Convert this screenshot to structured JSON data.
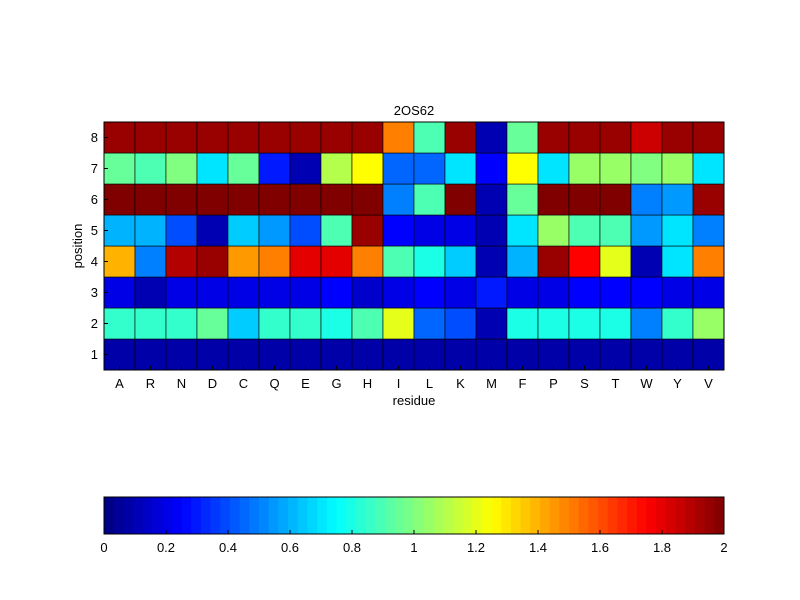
{
  "chart_data": {
    "type": "heatmap",
    "title": "2OS62",
    "xlabel": "residue",
    "ylabel": "position",
    "x_categories": [
      "A",
      "R",
      "N",
      "D",
      "C",
      "Q",
      "E",
      "G",
      "H",
      "I",
      "L",
      "K",
      "M",
      "F",
      "P",
      "S",
      "T",
      "W",
      "Y",
      "V"
    ],
    "y_categories": [
      "1",
      "2",
      "3",
      "4",
      "5",
      "6",
      "7",
      "8"
    ],
    "colormap": "jet",
    "clim": [
      0,
      2
    ],
    "colorbar": {
      "placement": "bottom",
      "ticks": [
        0,
        0.2,
        0.4,
        0.6,
        0.8,
        1,
        1.2,
        1.4,
        1.6,
        1.8,
        2
      ],
      "tick_labels": [
        "0",
        "0.2",
        "0.4",
        "0.6",
        "0.8",
        "1",
        "1.2",
        "1.4",
        "1.6",
        "1.8",
        "2"
      ]
    },
    "values": [
      [
        0.08,
        0.08,
        0.08,
        0.08,
        0.08,
        0.08,
        0.08,
        0.08,
        0.08,
        0.08,
        0.08,
        0.08,
        0.08,
        0.08,
        0.08,
        0.08,
        0.08,
        0.08,
        0.08,
        0.08
      ],
      [
        0.85,
        0.85,
        0.85,
        0.95,
        0.65,
        0.85,
        0.85,
        0.8,
        0.9,
        1.2,
        0.45,
        0.4,
        0.1,
        0.8,
        0.8,
        0.8,
        0.8,
        0.5,
        0.85,
        1.05
      ],
      [
        0.2,
        0.1,
        0.2,
        0.2,
        0.2,
        0.2,
        0.2,
        0.25,
        0.15,
        0.2,
        0.25,
        0.2,
        0.3,
        0.2,
        0.2,
        0.25,
        0.25,
        0.25,
        0.2,
        0.2
      ],
      [
        1.4,
        0.5,
        1.9,
        1.95,
        1.45,
        1.5,
        1.8,
        1.8,
        1.5,
        0.9,
        0.8,
        0.65,
        0.1,
        0.6,
        1.95,
        1.75,
        1.2,
        0.1,
        0.7,
        1.5
      ],
      [
        0.6,
        0.6,
        0.4,
        0.1,
        0.65,
        0.55,
        0.4,
        0.9,
        1.95,
        0.25,
        0.2,
        0.2,
        0.1,
        0.7,
        1.05,
        0.9,
        0.9,
        0.55,
        0.7,
        0.5
      ],
      [
        2,
        2,
        2,
        2,
        2,
        2,
        2,
        2,
        2,
        0.5,
        0.9,
        2,
        0.1,
        0.95,
        2,
        2,
        2,
        0.5,
        0.55,
        1.95
      ],
      [
        0.95,
        0.9,
        1.0,
        0.7,
        0.95,
        0.3,
        0.1,
        1.1,
        1.25,
        0.45,
        0.45,
        0.7,
        0.25,
        1.25,
        0.7,
        1.05,
        1.05,
        1.0,
        1.05,
        0.7
      ],
      [
        1.95,
        1.95,
        1.95,
        1.95,
        1.95,
        1.95,
        1.95,
        1.95,
        1.95,
        1.5,
        0.9,
        1.95,
        0.1,
        0.95,
        1.95,
        1.95,
        1.95,
        1.85,
        1.95,
        1.95
      ]
    ]
  }
}
